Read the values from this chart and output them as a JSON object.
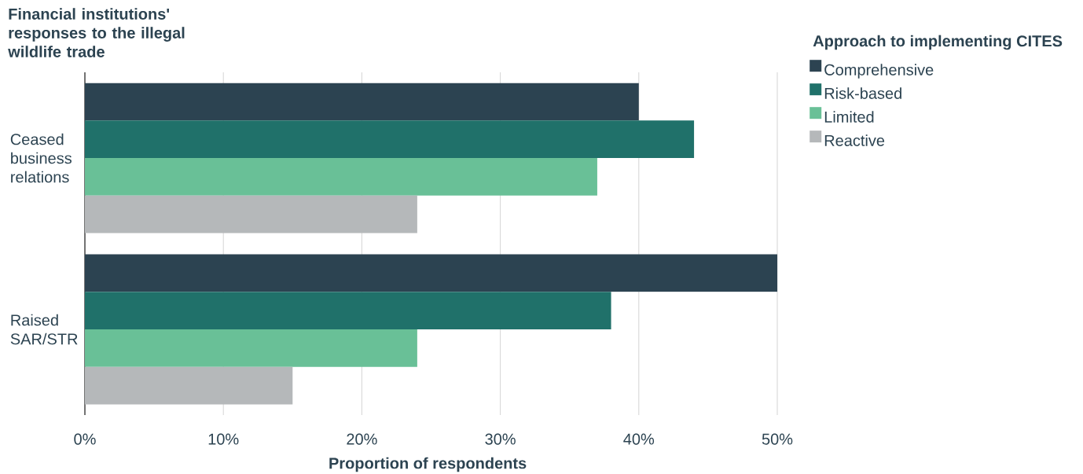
{
  "chart_data": {
    "type": "bar",
    "orientation": "horizontal",
    "ylabel": "Financial institutions' responses to the illegal wildlife trade",
    "xlabel": "Proportion of respondents",
    "legend_title": "Approach to implementing CITES",
    "categories": [
      "Ceased business relations",
      "Raised SAR/STR"
    ],
    "series": [
      {
        "name": "Comprehensive",
        "color": "#2c4351",
        "values": [
          40,
          50
        ]
      },
      {
        "name": "Risk-based",
        "color": "#20716a",
        "values": [
          44,
          38
        ]
      },
      {
        "name": "Limited",
        "color": "#69c097",
        "values": [
          37,
          24
        ]
      },
      {
        "name": "Reactive",
        "color": "#b5b8ba",
        "values": [
          24,
          15
        ]
      }
    ],
    "xlim": [
      0,
      50
    ],
    "xticks": [
      {
        "value": 0,
        "label": "0%"
      },
      {
        "value": 10,
        "label": "10%"
      },
      {
        "value": 20,
        "label": "20%"
      },
      {
        "value": 30,
        "label": "30%"
      },
      {
        "value": 40,
        "label": "40%"
      },
      {
        "value": 50,
        "label": "50%"
      }
    ],
    "grid": "x",
    "legend": "top right"
  }
}
